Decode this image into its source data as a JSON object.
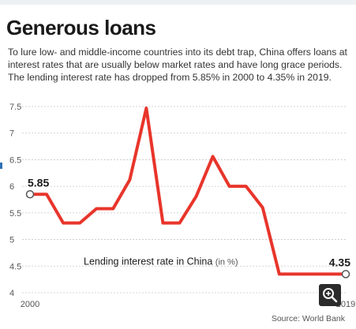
{
  "title": "Generous loans",
  "subtitle": "To lure low- and middle-income countries into its debt trap, China offers loans at interest rates that are usually below market rates and have long grace periods. The lending interest rate has dropped from 5.85% in 2000 to 4.35% in 2019.",
  "source": "Source: World Bank",
  "colors": {
    "line": "#e8352b",
    "grid": "#c8c8c8",
    "marker_fill": "#ffffff",
    "marker_stroke": "#555555",
    "zoom_button": "#2b2b2b"
  },
  "icons": {
    "zoom": "zoom-in-icon"
  },
  "chart_data": {
    "type": "line",
    "x": [
      2000,
      2001,
      2002,
      2003,
      2004,
      2005,
      2006,
      2007,
      2008,
      2009,
      2010,
      2011,
      2012,
      2013,
      2014,
      2015,
      2016,
      2017,
      2018,
      2019
    ],
    "series": [
      {
        "name": "Lending interest rate in China",
        "unit": "(in %)",
        "values": [
          5.85,
          5.85,
          5.31,
          5.31,
          5.58,
          5.58,
          6.12,
          7.47,
          5.31,
          5.31,
          5.81,
          6.56,
          6.0,
          6.0,
          5.6,
          4.35,
          4.35,
          4.35,
          4.35,
          4.35
        ]
      }
    ],
    "ylim": [
      4,
      7.5
    ],
    "yticks": [
      "7.5",
      "7",
      "6.5",
      "6",
      "5.5",
      "5",
      "4.5",
      "4"
    ],
    "xticks": [
      "2000",
      "2019"
    ],
    "grid": true,
    "data_labels": [
      {
        "x": 2000,
        "text": "5.85"
      },
      {
        "x": 2019,
        "text": "4.35"
      }
    ]
  }
}
